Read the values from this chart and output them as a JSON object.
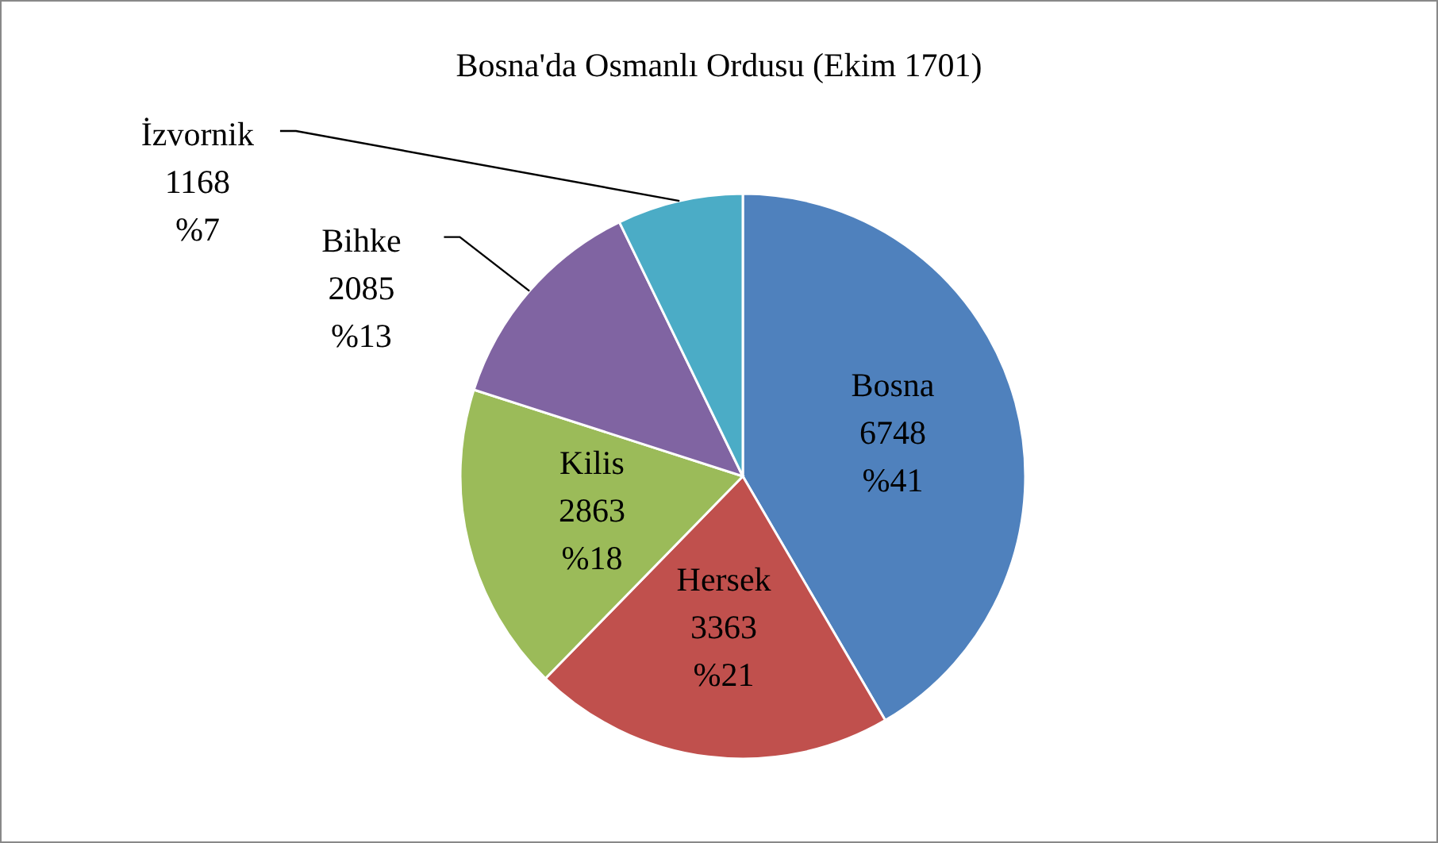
{
  "chart_data": {
    "type": "pie",
    "title": "Bosna'da Osmanlı Ordusu (Ekim 1701)",
    "categories": [
      "Bosna",
      "Hersek",
      "Kilis",
      "Bihke",
      "İzvornik"
    ],
    "values": [
      6748,
      3363,
      2863,
      2085,
      1168
    ],
    "colors": [
      "#4f81bd",
      "#c0504d",
      "#9bbb59",
      "#8064a2",
      "#4bacc6"
    ],
    "value_labels": [
      "6748\n%41",
      "3363\n%21",
      "2863\n%18",
      "2085\n%13",
      "1168\n%7"
    ]
  }
}
